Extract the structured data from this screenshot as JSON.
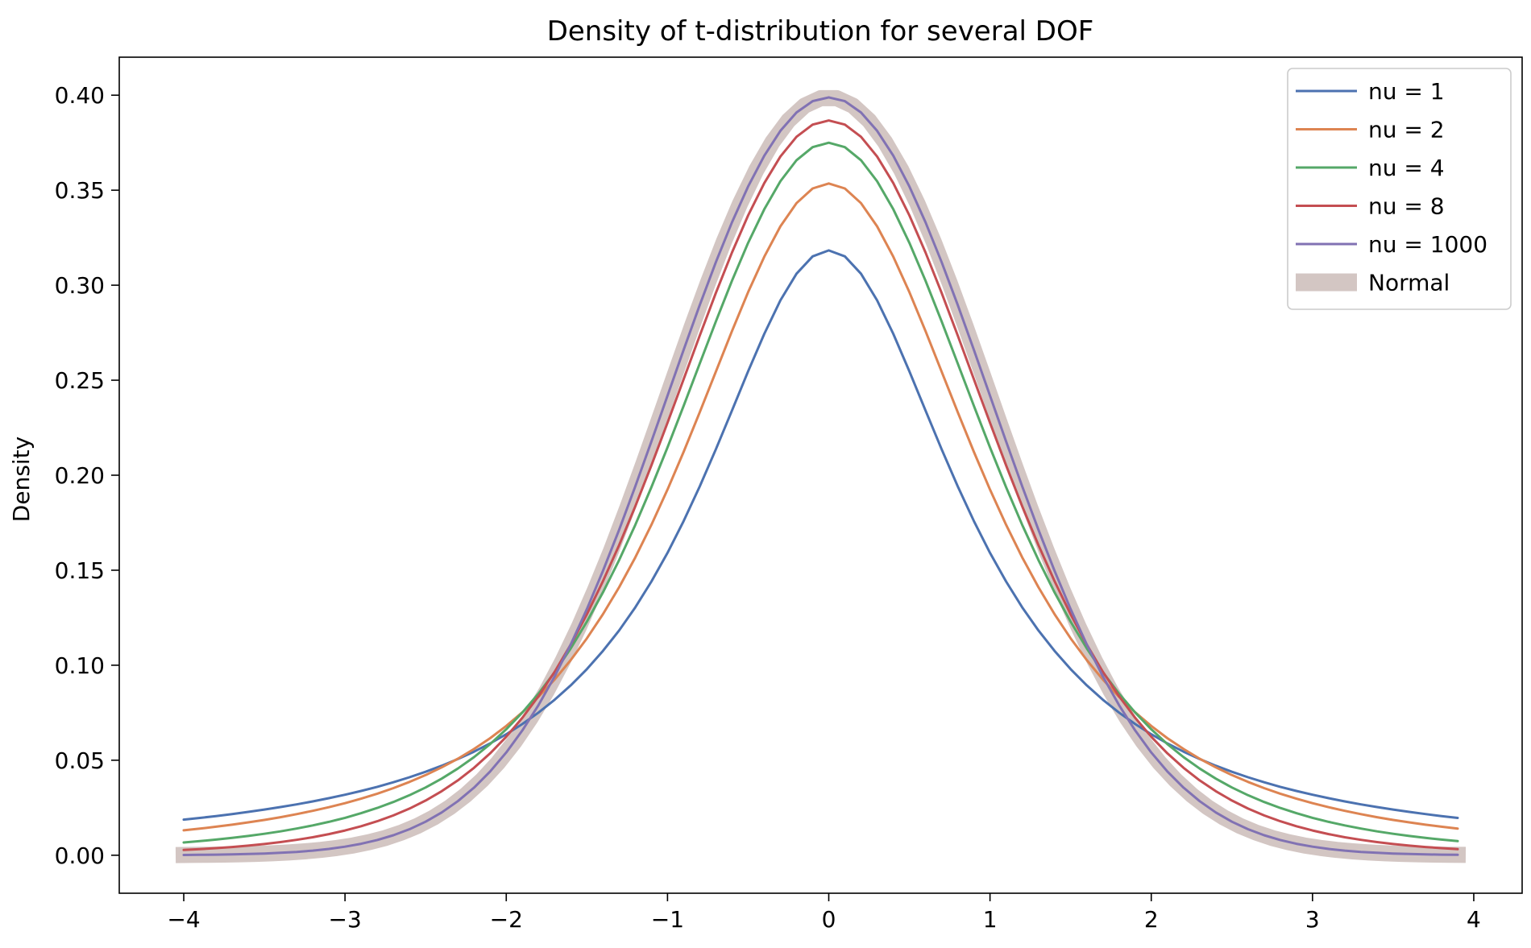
{
  "chart_data": {
    "type": "line",
    "title": "Density of t-distribution for several DOF",
    "xlabel": "",
    "ylabel": "Density",
    "xlim": [
      -4.4,
      4.3
    ],
    "ylim": [
      -0.02,
      0.42
    ],
    "x_ticks": [
      -4,
      -3,
      -2,
      -1,
      0,
      1,
      2,
      3,
      4
    ],
    "x_tick_labels": [
      "−4",
      "−3",
      "−2",
      "−1",
      "0",
      "1",
      "2",
      "3",
      "4"
    ],
    "y_ticks": [
      0.0,
      0.05,
      0.1,
      0.15,
      0.2,
      0.25,
      0.3,
      0.35,
      0.4
    ],
    "y_tick_labels": [
      "0.00",
      "0.05",
      "0.10",
      "0.15",
      "0.20",
      "0.25",
      "0.30",
      "0.35",
      "0.40"
    ],
    "grid": false,
    "legend_position": "top-right",
    "x_range": [
      -4.0,
      3.9
    ],
    "x_step": 0.1,
    "series": [
      {
        "name": "nu = 1",
        "dof": 1,
        "color": "#4c72b0",
        "style": "thin"
      },
      {
        "name": "nu = 2",
        "dof": 2,
        "color": "#dd8452",
        "style": "thin"
      },
      {
        "name": "nu = 4",
        "dof": 4,
        "color": "#55a868",
        "style": "thin"
      },
      {
        "name": "nu = 8",
        "dof": 8,
        "color": "#c44e52",
        "style": "thin"
      },
      {
        "name": "nu = 1000",
        "dof": 1000,
        "color": "#8172b3",
        "style": "thin"
      },
      {
        "name": "Normal",
        "dof": null,
        "color": "#d3c6c3",
        "style": "thick",
        "x_range": [
          -4.05,
          3.95
        ]
      }
    ],
    "sample_values": {
      "x": [
        -4,
        -3,
        -2,
        -1,
        0,
        1,
        2,
        3,
        4
      ],
      "nu = 1": [
        0.0187,
        0.0318,
        0.0637,
        0.1592,
        0.3183,
        0.1592,
        0.0637,
        0.0318,
        0.0187
      ],
      "nu = 2": [
        0.0131,
        0.0275,
        0.068,
        0.1925,
        0.3536,
        0.1925,
        0.068,
        0.0275,
        0.0131
      ],
      "nu = 4": [
        0.0066,
        0.0197,
        0.0663,
        0.2147,
        0.375,
        0.2147,
        0.0663,
        0.0197,
        0.0066
      ],
      "nu = 8": [
        0.0025,
        0.0121,
        0.0603,
        0.2276,
        0.3867,
        0.2276,
        0.0603,
        0.0121,
        0.0025
      ],
      "nu = 1000": [
        0.0001,
        0.0045,
        0.0541,
        0.2421,
        0.3988,
        0.2421,
        0.0541,
        0.0045,
        0.0001
      ],
      "Normal": [
        0.0001,
        0.0044,
        0.054,
        0.242,
        0.3989,
        0.242,
        0.054,
        0.0044,
        0.0001
      ]
    }
  }
}
